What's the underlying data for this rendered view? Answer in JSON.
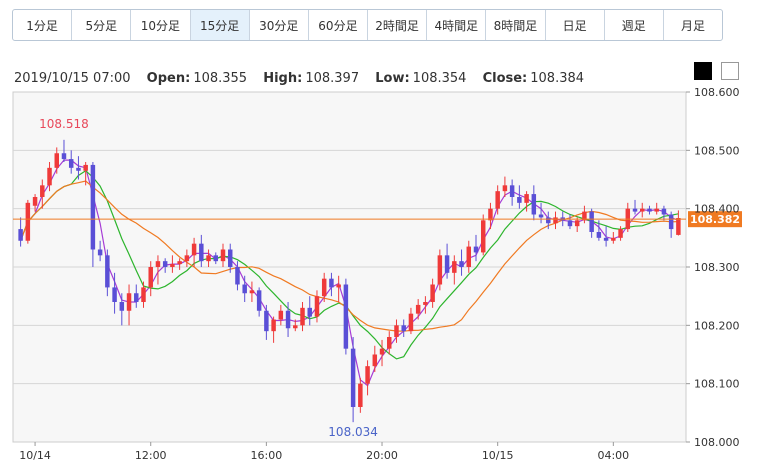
{
  "timeframes": [
    "1分足",
    "5分足",
    "10分足",
    "15分足",
    "30分足",
    "60分足",
    "2時間足",
    "4時間足",
    "8時間足",
    "日足",
    "週足",
    "月足"
  ],
  "active_timeframe": "15分足",
  "ohlc": {
    "datetime": "2019/10/15 07:00",
    "open_label": "Open:",
    "open": "108.355",
    "high_label": "High:",
    "high": "108.397",
    "low_label": "Low:",
    "low": "108.354",
    "close_label": "Close:",
    "close": "108.384"
  },
  "theme_buttons": [
    "dark-theme",
    "light-theme"
  ],
  "colors": {
    "up": "#ef3a3a",
    "down": "#5a4fd6",
    "ma_short": "#a63cd6",
    "ma_mid": "#2db52d",
    "ma_long": "#f07a22",
    "price_line": "#f07a22",
    "high_label": "#e8485a",
    "low_label": "#4a64c8"
  },
  "chart_data": {
    "type": "candlestick",
    "ylim": [
      108.0,
      108.6
    ],
    "y_ticks": [
      "108.000",
      "108.100",
      "108.200",
      "108.300",
      "108.400",
      "108.500",
      "108.600"
    ],
    "x_ticks": [
      {
        "label": "10/14",
        "index": 2
      },
      {
        "label": "12:00",
        "index": 18
      },
      {
        "label": "16:00",
        "index": 34
      },
      {
        "label": "20:00",
        "index": 50
      },
      {
        "label": "10/15",
        "index": 66
      },
      {
        "label": "04:00",
        "index": 82
      }
    ],
    "current_price": "108.382",
    "high_annotation": {
      "text": "108.518",
      "index": 6,
      "value": 108.518
    },
    "low_annotation": {
      "text": "108.034",
      "index": 46,
      "value": 108.034
    },
    "candles": [
      [
        108.365,
        108.385,
        108.335,
        108.345
      ],
      [
        108.345,
        108.415,
        108.34,
        108.41
      ],
      [
        108.405,
        108.425,
        108.395,
        108.42
      ],
      [
        108.42,
        108.45,
        108.4,
        108.44
      ],
      [
        108.44,
        108.48,
        108.43,
        108.47
      ],
      [
        108.47,
        108.505,
        108.46,
        108.495
      ],
      [
        108.495,
        108.518,
        108.48,
        108.485
      ],
      [
        108.485,
        108.5,
        108.46,
        108.47
      ],
      [
        108.47,
        108.49,
        108.45,
        108.465
      ],
      [
        108.465,
        108.48,
        108.44,
        108.475
      ],
      [
        108.475,
        108.48,
        108.3,
        108.33
      ],
      [
        108.33,
        108.345,
        108.31,
        108.32
      ],
      [
        108.32,
        108.33,
        108.25,
        108.265
      ],
      [
        108.265,
        108.29,
        108.22,
        108.24
      ],
      [
        108.24,
        108.255,
        108.2,
        108.225
      ],
      [
        108.225,
        108.27,
        108.2,
        108.255
      ],
      [
        108.255,
        108.27,
        108.23,
        108.24
      ],
      [
        108.24,
        108.275,
        108.23,
        108.265
      ],
      [
        108.265,
        108.31,
        108.25,
        108.3
      ],
      [
        108.3,
        108.32,
        108.27,
        108.31
      ],
      [
        108.31,
        108.315,
        108.29,
        108.3
      ],
      [
        108.3,
        108.32,
        108.29,
        108.305
      ],
      [
        108.305,
        108.315,
        108.295,
        108.31
      ],
      [
        108.31,
        108.33,
        108.3,
        108.32
      ],
      [
        108.32,
        108.35,
        108.3,
        108.34
      ],
      [
        108.34,
        108.355,
        108.3,
        108.31
      ],
      [
        108.31,
        108.33,
        108.3,
        108.32
      ],
      [
        108.32,
        108.325,
        108.305,
        108.31
      ],
      [
        108.31,
        108.34,
        108.3,
        108.33
      ],
      [
        108.33,
        108.34,
        108.29,
        108.3
      ],
      [
        108.3,
        108.31,
        108.26,
        108.27
      ],
      [
        108.27,
        108.285,
        108.24,
        108.255
      ],
      [
        108.255,
        108.275,
        108.24,
        108.26
      ],
      [
        108.26,
        108.265,
        108.215,
        108.225
      ],
      [
        108.225,
        108.235,
        108.175,
        108.19
      ],
      [
        108.19,
        108.215,
        108.17,
        108.21
      ],
      [
        108.21,
        108.235,
        108.2,
        108.225
      ],
      [
        108.225,
        108.24,
        108.18,
        108.195
      ],
      [
        108.195,
        108.21,
        108.19,
        108.2
      ],
      [
        108.2,
        108.24,
        108.19,
        108.23
      ],
      [
        108.23,
        108.25,
        108.2,
        108.215
      ],
      [
        108.215,
        108.26,
        108.205,
        108.25
      ],
      [
        108.25,
        108.29,
        108.24,
        108.28
      ],
      [
        108.28,
        108.29,
        108.25,
        108.265
      ],
      [
        108.265,
        108.285,
        108.24,
        108.27
      ],
      [
        108.27,
        108.28,
        108.15,
        108.16
      ],
      [
        108.16,
        108.18,
        108.034,
        108.06
      ],
      [
        108.06,
        108.11,
        108.05,
        108.1
      ],
      [
        108.1,
        108.14,
        108.08,
        108.13
      ],
      [
        108.13,
        108.165,
        108.12,
        108.15
      ],
      [
        108.15,
        108.175,
        108.13,
        108.16
      ],
      [
        108.16,
        108.19,
        108.15,
        108.18
      ],
      [
        108.18,
        108.21,
        108.17,
        108.2
      ],
      [
        108.2,
        108.21,
        108.18,
        108.19
      ],
      [
        108.19,
        108.23,
        108.185,
        108.22
      ],
      [
        108.22,
        108.245,
        108.21,
        108.235
      ],
      [
        108.235,
        108.25,
        108.22,
        108.24
      ],
      [
        108.24,
        108.28,
        108.23,
        108.27
      ],
      [
        108.27,
        108.33,
        108.26,
        108.32
      ],
      [
        108.32,
        108.34,
        108.28,
        108.29
      ],
      [
        108.29,
        108.32,
        108.27,
        108.31
      ],
      [
        108.31,
        108.33,
        108.285,
        108.3
      ],
      [
        108.3,
        108.345,
        108.29,
        108.335
      ],
      [
        108.335,
        108.355,
        108.31,
        108.325
      ],
      [
        108.325,
        108.39,
        108.32,
        108.38
      ],
      [
        108.38,
        108.41,
        108.365,
        108.4
      ],
      [
        108.4,
        108.44,
        108.39,
        108.43
      ],
      [
        108.43,
        108.455,
        108.42,
        108.44
      ],
      [
        108.44,
        108.45,
        108.405,
        108.42
      ],
      [
        108.42,
        108.44,
        108.4,
        108.41
      ],
      [
        108.41,
        108.43,
        108.395,
        108.425
      ],
      [
        108.425,
        108.44,
        108.38,
        108.39
      ],
      [
        108.39,
        108.41,
        108.375,
        108.385
      ],
      [
        108.385,
        108.395,
        108.365,
        108.375
      ],
      [
        108.375,
        108.395,
        108.365,
        108.385
      ],
      [
        108.385,
        108.395,
        108.37,
        108.38
      ],
      [
        108.38,
        108.39,
        108.365,
        108.37
      ],
      [
        108.37,
        108.385,
        108.36,
        108.38
      ],
      [
        108.38,
        108.405,
        108.375,
        108.395
      ],
      [
        108.395,
        108.4,
        108.35,
        108.36
      ],
      [
        108.36,
        108.38,
        108.345,
        108.35
      ],
      [
        108.35,
        108.37,
        108.335,
        108.345
      ],
      [
        108.345,
        108.36,
        108.34,
        108.35
      ],
      [
        108.35,
        108.37,
        108.345,
        108.365
      ],
      [
        108.365,
        108.41,
        108.36,
        108.4
      ],
      [
        108.4,
        108.415,
        108.39,
        108.395
      ],
      [
        108.395,
        108.41,
        108.385,
        108.4
      ],
      [
        108.4,
        108.405,
        108.39,
        108.395
      ],
      [
        108.395,
        108.41,
        108.39,
        108.4
      ],
      [
        108.4,
        108.405,
        108.38,
        108.39
      ],
      [
        108.39,
        108.395,
        108.35,
        108.365
      ],
      [
        108.355,
        108.397,
        108.354,
        108.384
      ]
    ]
  }
}
